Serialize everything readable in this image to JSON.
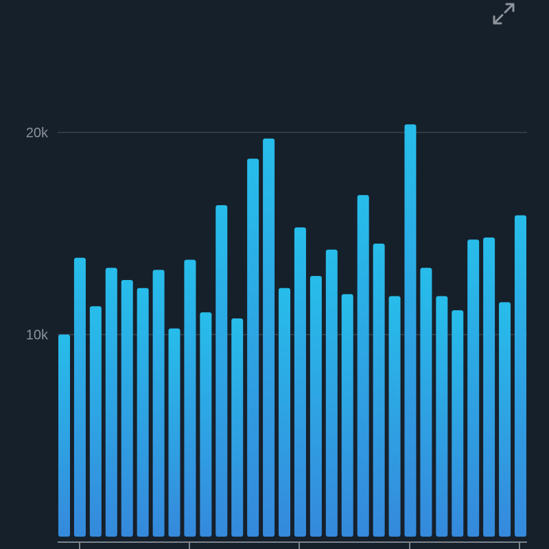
{
  "colors": {
    "background": "#16202b",
    "gridline": "#3a4450",
    "axis": "#7d858f",
    "bar_top": "#27bdea",
    "bar_bottom": "#3589dc",
    "expand_icon": "#8e949c"
  },
  "toolbar": {
    "expand_icon": "expand-icon"
  },
  "chart_data": {
    "type": "bar",
    "title": "",
    "xlabel": "",
    "ylabel": "",
    "yticks": [
      {
        "value": 10000,
        "label": "10k"
      },
      {
        "value": 20000,
        "label": "20k"
      }
    ],
    "ylim": [
      0,
      26000
    ],
    "grid": true,
    "values": [
      10000,
      13800,
      11400,
      13300,
      12700,
      12300,
      13200,
      10300,
      13700,
      11100,
      16400,
      10800,
      18700,
      19700,
      12300,
      15300,
      12900,
      14200,
      12000,
      16900,
      14500,
      11900,
      20400,
      13300,
      11900,
      11200,
      14700,
      14800,
      11600,
      15900
    ]
  }
}
